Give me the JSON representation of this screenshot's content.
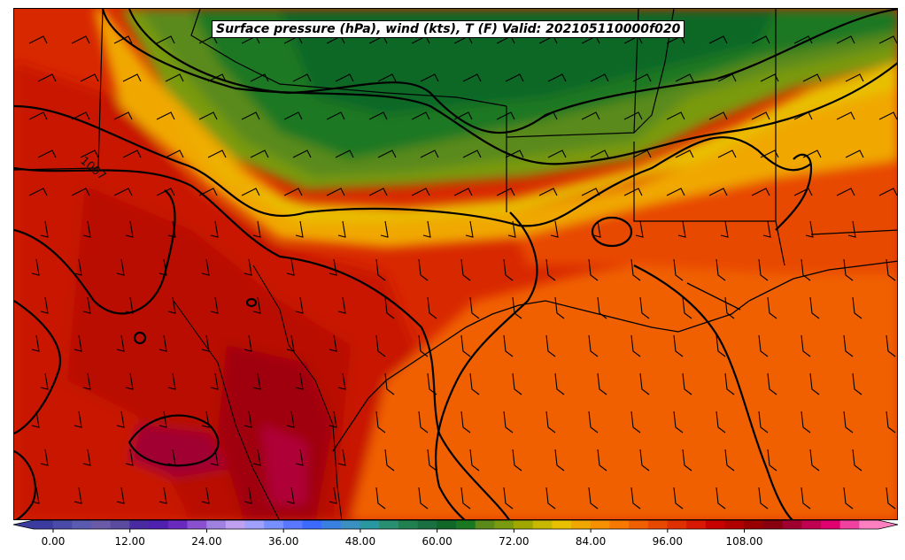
{
  "title": "Surface pressure (hPa), wind (kts), T (F) Valid: 202105110000f020",
  "isobar_label": "1007",
  "colorbar": {
    "colors": [
      "#3c3ca0",
      "#4a4aa8",
      "#5a5ab0",
      "#6a5aa8",
      "#5a4aa0",
      "#4a2aa0",
      "#5020b0",
      "#6a2ac0",
      "#8a50d0",
      "#a080e0",
      "#c0a0f0",
      "#a0a0ff",
      "#7890ff",
      "#5a78ff",
      "#3a6aff",
      "#3a80e0",
      "#3a90c0",
      "#2a98a0",
      "#289070",
      "#208050",
      "#1a7040",
      "#106828",
      "#1a7820",
      "#5a8a1a",
      "#7a9a10",
      "#a0a800",
      "#c8b800",
      "#e8c000",
      "#f0a800",
      "#f89000",
      "#f87800",
      "#f06000",
      "#e84800",
      "#e03000",
      "#d81800",
      "#c80000",
      "#b00000",
      "#980000",
      "#880010",
      "#a00030",
      "#c00050",
      "#e00070",
      "#f040a0",
      "#ff80c0"
    ],
    "ticks": [
      "0.00",
      "12.00",
      "24.00",
      "36.00",
      "48.00",
      "60.00",
      "72.00",
      "84.00",
      "96.00",
      "108.00"
    ]
  }
}
